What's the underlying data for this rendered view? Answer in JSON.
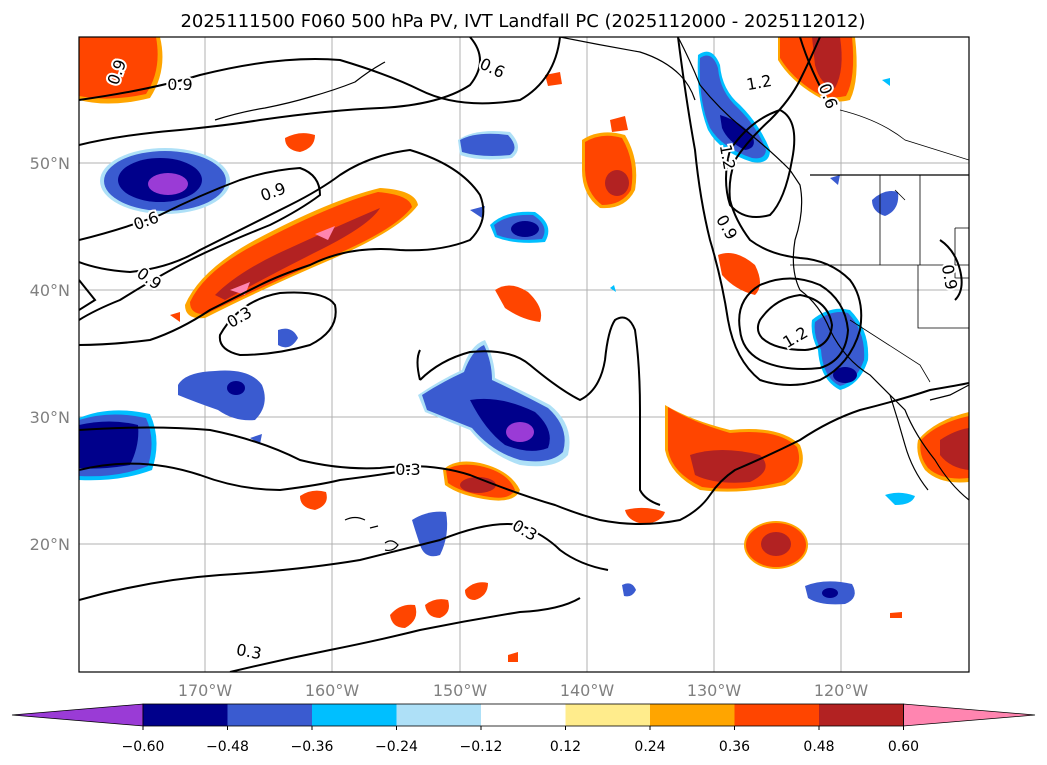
{
  "title": "2025111500 F060 500 hPa PV, IVT Landfall PC (2025112000 - 2025112012)",
  "map": {
    "lat_labels": [
      "50°N",
      "40°N",
      "30°N",
      "20°N"
    ],
    "lon_labels": [
      "170°W",
      "160°W",
      "150°W",
      "140°W",
      "130°W",
      "120°W"
    ],
    "contour_labels": [
      "0.9",
      "0.9",
      "0.6",
      "1.2",
      "0.6",
      "0.9",
      "0.6",
      "0.9",
      "0.3",
      "1.2",
      "0.9",
      "1.2",
      "0.9",
      "0.3",
      "0.3",
      "0.3"
    ]
  },
  "colorbar": {
    "tick_labels": [
      "−0.60",
      "−0.48",
      "−0.36",
      "−0.24",
      "−0.12",
      "0.12",
      "0.24",
      "0.36",
      "0.48",
      "0.60"
    ],
    "colors": [
      "#9a3bd6",
      "#00008b",
      "#3a5bd0",
      "#00bfff",
      "#aee0f7",
      "#ffffff",
      "#ffec8c",
      "#ffa500",
      "#ff4500",
      "#b22222",
      "#ff85b0"
    ]
  }
}
